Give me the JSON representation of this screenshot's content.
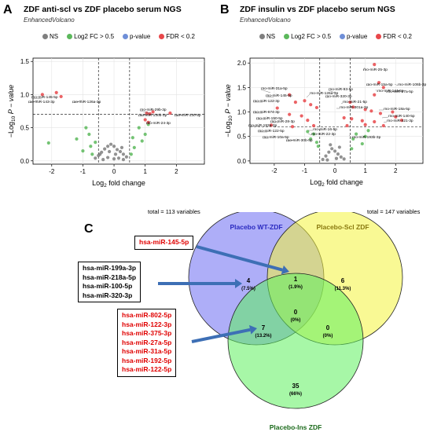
{
  "panelA": {
    "letter": "A",
    "title": "ZDF anti-scl vs ZDF placebo serum NGS",
    "subtitle": "EnhancedVolcano",
    "legend": [
      "NS",
      "Log2 FC > 0.5",
      "p-value",
      "FDR < 0.2"
    ],
    "total": "total = 113 variables"
  },
  "panelB": {
    "letter": "B",
    "title": "ZDF insulin vs ZDF placebo serum NGS",
    "subtitle": "EnhancedVolcano",
    "legend": [
      "NS",
      "Log2 FC > 0.5",
      "p-value",
      "FDR < 0.2"
    ],
    "total": "total = 147 variables"
  },
  "panelC": {
    "letter": "C",
    "box1": [
      "hsa-miR-145-5p"
    ],
    "box2": [
      "hsa-miR-199a-3p",
      "hsa-miR-218a-5p",
      "hsa-miR-100-5p",
      "hsa-miR-320-3p"
    ],
    "box3": [
      "hsa-miR-802-5p",
      "hsa-miR-122-3p",
      "hsa-miR-375-3p",
      "hsa-miR-27a-5p",
      "hsa-miR-31a-5p",
      "hsa-miR-192-5p",
      "hsa-miR-122-5p"
    ]
  },
  "colors": {
    "ns": "#7f7f7f",
    "fc": "#5cb85c",
    "pval": "#6f8fd8",
    "fdr": "#e8474a",
    "venn_blue": "#6c6cf2",
    "venn_yellow": "#f4f43c",
    "venn_green": "#5ef05e",
    "arrow": "#3d6fb5"
  },
  "chart_data": [
    {
      "type": "scatter",
      "title": "ZDF anti-scl vs ZDF placebo serum NGS",
      "subtitle": "EnhancedVolcano",
      "xlabel": "Log2 fold change",
      "ylabel": "-Log10 P - value",
      "xlim": [
        -2.6,
        2.9
      ],
      "ylim": [
        -0.05,
        1.55
      ],
      "xticks": [
        -2,
        -1,
        0,
        1,
        2
      ],
      "yticks": [
        0.0,
        0.5,
        1.0,
        1.5
      ],
      "fc_cutoffs": [
        -0.5,
        0.5
      ],
      "p_cutoff": 0.7,
      "series": [
        {
          "name": "NS",
          "points": [
            [
              -0.6,
              0.04
            ],
            [
              -0.5,
              0.08
            ],
            [
              -0.4,
              0.13
            ],
            [
              -0.3,
              0.18
            ],
            [
              -0.2,
              0.22
            ],
            [
              -0.1,
              0.25
            ],
            [
              0.0,
              0.22
            ],
            [
              0.1,
              0.17
            ],
            [
              0.2,
              0.14
            ],
            [
              0.3,
              0.1
            ],
            [
              0.4,
              0.06
            ],
            [
              -0.35,
              0.02
            ],
            [
              -0.2,
              0.05
            ],
            [
              0.0,
              0.03
            ],
            [
              0.15,
              0.04
            ],
            [
              0.3,
              0.02
            ],
            [
              -0.45,
              0.1
            ],
            [
              0.05,
              0.1
            ],
            [
              -0.15,
              0.14
            ],
            [
              0.25,
              0.2
            ]
          ]
        },
        {
          "name": "Log2 FC > 0.5",
          "points": [
            [
              -2.1,
              0.27
            ],
            [
              -1.2,
              0.33
            ],
            [
              -0.9,
              0.5
            ],
            [
              -0.8,
              0.4
            ],
            [
              -0.75,
              0.22
            ],
            [
              -0.7,
              0.1
            ],
            [
              -0.6,
              0.28
            ],
            [
              0.6,
              0.35
            ],
            [
              0.65,
              0.2
            ],
            [
              0.8,
              0.5
            ],
            [
              0.9,
              0.3
            ],
            [
              1.0,
              0.4
            ],
            [
              1.1,
              0.55
            ],
            [
              0.55,
              0.1
            ],
            [
              -1.0,
              0.15
            ]
          ]
        },
        {
          "name": "FDR < 0.2",
          "points": [
            [
              -1.85,
              1.03
            ],
            [
              -2.3,
              1.0
            ],
            [
              -1.7,
              0.97
            ],
            [
              1.05,
              0.72
            ],
            [
              1.15,
              0.71
            ],
            [
              1.25,
              0.74
            ],
            [
              1.8,
              0.72
            ],
            [
              1.0,
              0.62
            ],
            [
              1.1,
              0.58
            ]
          ]
        }
      ],
      "annotations": [
        "rno-miR-145-5p",
        "rno-miR-143-3p",
        "rno-miR-126a-3p",
        "rno-miR-29b-3p",
        "rno-miR-130b-3p",
        "rno-miR-130-5p",
        "rno-miR-24-3p"
      ],
      "note": "total = 113 variables"
    },
    {
      "type": "scatter",
      "title": "ZDF insulin vs ZDF placebo serum NGS",
      "subtitle": "EnhancedVolcano",
      "xlabel": "Log2 fold change",
      "ylabel": "-Log10 P - value",
      "xlim": [
        -2.8,
        2.9
      ],
      "ylim": [
        -0.05,
        2.1
      ],
      "xticks": [
        -2,
        -1,
        0,
        1,
        2
      ],
      "yticks": [
        0.0,
        0.5,
        1.0,
        1.5,
        2.0
      ],
      "fc_cutoffs": [
        -0.5,
        0.5
      ],
      "p_cutoff": 0.7,
      "series": [
        {
          "name": "NS",
          "points": [
            [
              -0.4,
              0.03
            ],
            [
              -0.3,
              0.1
            ],
            [
              -0.2,
              0.18
            ],
            [
              -0.1,
              0.25
            ],
            [
              0.0,
              0.2
            ],
            [
              0.1,
              0.14
            ],
            [
              0.2,
              0.08
            ],
            [
              0.3,
              0.04
            ],
            [
              -0.25,
              0.02
            ],
            [
              0.05,
              0.05
            ],
            [
              0.15,
              0.28
            ],
            [
              -0.15,
              0.33
            ]
          ]
        },
        {
          "name": "Log2 FC > 0.5",
          "points": [
            [
              -0.9,
              0.6
            ],
            [
              -0.8,
              0.45
            ],
            [
              -0.7,
              0.55
            ],
            [
              -0.6,
              0.38
            ],
            [
              -0.55,
              0.3
            ],
            [
              0.6,
              0.45
            ],
            [
              0.7,
              0.55
            ],
            [
              0.9,
              0.35
            ],
            [
              1.0,
              0.5
            ],
            [
              1.1,
              0.62
            ],
            [
              0.55,
              0.25
            ]
          ]
        },
        {
          "name": "FDR < 0.2",
          "points": [
            [
              1.3,
              1.97
            ],
            [
              1.45,
              1.6
            ],
            [
              1.6,
              1.5
            ],
            [
              1.3,
              1.35
            ],
            [
              -1.5,
              1.35
            ],
            [
              -1.0,
              1.23
            ],
            [
              -0.8,
              1.15
            ],
            [
              -1.3,
              1.2
            ],
            [
              -1.9,
              1.08
            ],
            [
              -0.6,
              1.09
            ],
            [
              0.5,
              1.2
            ],
            [
              0.6,
              1.1
            ],
            [
              1.0,
              1.05
            ],
            [
              1.2,
              1.02
            ],
            [
              1.5,
              0.97
            ],
            [
              1.9,
              1.0
            ],
            [
              -1.1,
              0.92
            ],
            [
              -1.5,
              0.95
            ],
            [
              -0.9,
              0.83
            ],
            [
              0.3,
              0.88
            ],
            [
              0.55,
              0.86
            ],
            [
              0.9,
              0.82
            ],
            [
              1.3,
              0.8
            ],
            [
              -2.1,
              0.73
            ],
            [
              -1.4,
              0.7
            ],
            [
              -0.7,
              0.72
            ],
            [
              0.4,
              0.72
            ],
            [
              1.0,
              0.74
            ],
            [
              1.6,
              0.72
            ],
            [
              2.2,
              0.83
            ],
            [
              2.0,
              0.9
            ]
          ]
        }
      ],
      "annotations": [
        "rno-miR-25-3p",
        "rno-miR-106b-3p",
        "rno-miR-15a-5p",
        "rno-miR-144-5p",
        "rno-miR-27a-5p",
        "rno-miR-31a-5p",
        "rno-miR-93-5p",
        "rno-miR-145-5p",
        "rno-miR-126a-3p",
        "rno-miR-320-3p",
        "rno-miR-122-3p",
        "rno-miR-21-5p",
        "rno-miR-301a-3p",
        "rno-miR-18a-5p",
        "rno-miR-674-3p",
        "rno-miR-140-5p",
        "rno-miR-150-5p",
        "rno-miR-421-3p",
        "rno-miR-28-3p",
        "rno-miR-193a-3p",
        "rno-miR-122-5p",
        "rno-miR-16-5p",
        "rno-miR-10a-5p",
        "rno-miR-30b-5p",
        "rno-miR-22-3p",
        "rno-miR-193b-3p"
      ],
      "note": "total = 147 variables"
    },
    {
      "type": "venn",
      "sets": [
        "Placebo WT-ZDF",
        "Placebo-Scl ZDF",
        "Placebo-Ins ZDF"
      ],
      "regions": [
        {
          "sets": [
            "Placebo WT-ZDF"
          ],
          "count": "4",
          "percent": "(7.5%)"
        },
        {
          "sets": [
            "Placebo-Scl ZDF"
          ],
          "count": "6",
          "percent": "(11.3%)"
        },
        {
          "sets": [
            "Placebo-Ins ZDF"
          ],
          "count": "35",
          "percent": "(66%)"
        },
        {
          "sets": [
            "Placebo WT-ZDF",
            "Placebo-Scl ZDF"
          ],
          "count": "1",
          "percent": "(1.9%)"
        },
        {
          "sets": [
            "Placebo WT-ZDF",
            "Placebo-Ins ZDF"
          ],
          "count": "7",
          "percent": "(13.2%)"
        },
        {
          "sets": [
            "Placebo-Scl ZDF",
            "Placebo-Ins ZDF"
          ],
          "count": "0",
          "percent": "(0%)"
        },
        {
          "sets": [
            "Placebo WT-ZDF",
            "Placebo-Scl ZDF",
            "Placebo-Ins ZDF"
          ],
          "count": "0",
          "percent": "(0%)"
        }
      ]
    }
  ]
}
